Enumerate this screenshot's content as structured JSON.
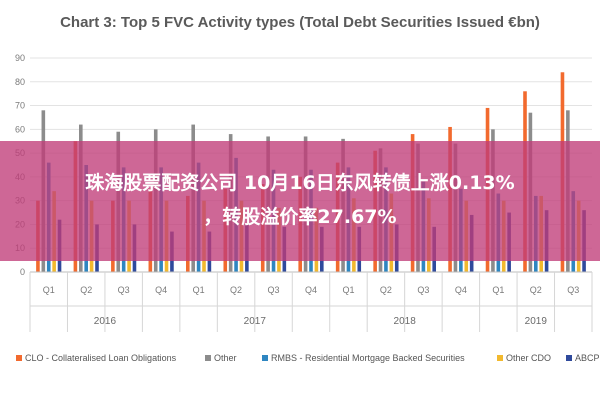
{
  "colors": {
    "CLO": "#f26a2e",
    "Other": "#8c8c8c",
    "RMBS": "#2e86c1",
    "Other CDO": "#f2b92e",
    "ABCP": "#2f4a9c",
    "overlay": "#c03c78"
  },
  "chart_data": {
    "type": "bar",
    "title": "Chart 3: Top 5 FVC Activity types (Total Debt Securities Issued €bn)",
    "ylim": [
      0,
      90
    ],
    "yticks": [
      0,
      10,
      20,
      30,
      40,
      50,
      60,
      70,
      80,
      90
    ],
    "grid": true,
    "legend_position": "bottom",
    "categories": [
      "Q1",
      "Q2",
      "Q3",
      "Q4",
      "Q1",
      "Q2",
      "Q3",
      "Q4",
      "Q1",
      "Q2",
      "Q3",
      "Q4",
      "Q1",
      "Q2",
      "Q3"
    ],
    "year_groups": [
      {
        "label": "2016",
        "start": 0,
        "end": 3
      },
      {
        "label": "2017",
        "start": 4,
        "end": 7
      },
      {
        "label": "2018",
        "start": 8,
        "end": 11
      },
      {
        "label": "2019",
        "start": 12,
        "end": 14
      }
    ],
    "series": [
      {
        "name": "CLO - Collateralised Loan Obligations",
        "key": "CLO",
        "values": [
          30,
          55,
          30,
          35,
          32,
          35,
          37,
          40,
          46,
          51,
          58,
          61,
          69,
          76,
          84
        ]
      },
      {
        "name": "Other",
        "key": "Other",
        "values": [
          68,
          62,
          59,
          60,
          62,
          58,
          57,
          57,
          56,
          52,
          54,
          54,
          60,
          67,
          68
        ]
      },
      {
        "name": "RMBS - Residential Mortgage Backed Securities",
        "key": "RMBS",
        "values": [
          46,
          45,
          44,
          44,
          46,
          48,
          43,
          43,
          44,
          44,
          38,
          35,
          33,
          32,
          34
        ]
      },
      {
        "name": "Other CDO",
        "key": "Other CDO",
        "values": [
          34,
          30,
          30,
          30,
          30,
          30,
          27,
          27,
          31,
          33,
          31,
          30,
          30,
          32,
          30
        ]
      },
      {
        "name": "ABCP",
        "key": "ABCP",
        "values": [
          22,
          20,
          20,
          17,
          17,
          20,
          19,
          19,
          19,
          20,
          19,
          24,
          25,
          26,
          26
        ]
      }
    ]
  },
  "overlay": {
    "line1": "珠海股票配资公司 10月16日东风转债上涨0.13%",
    "line2": "，转股溢价率27.67%"
  }
}
